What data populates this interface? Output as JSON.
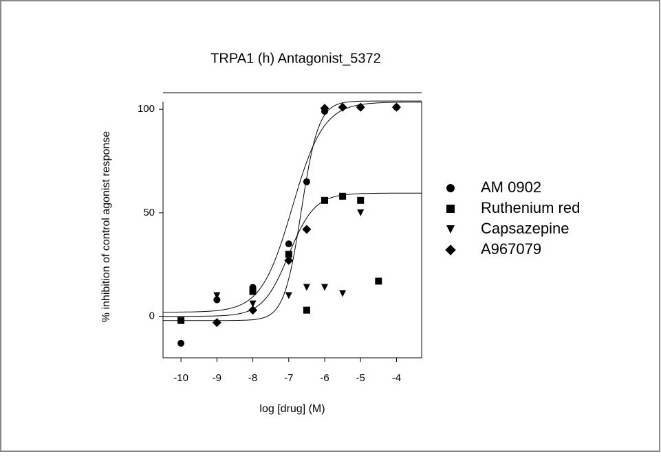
{
  "chart_data": {
    "type": "scatter",
    "title": "TRPA1 (h) Antagonist_5372",
    "xlabel": "log [drug] (M)",
    "ylabel": "% inhibition of control agonist response",
    "xlim": [
      -10.5,
      -3.3
    ],
    "ylim": [
      -20,
      108
    ],
    "xticks": [
      -10,
      -9,
      -8,
      -7,
      -6,
      -5,
      -4
    ],
    "yticks": [
      0,
      50,
      100
    ],
    "legend": "right",
    "series": [
      {
        "name": "AM 0902",
        "marker": "circle",
        "color": "#000000",
        "x": [
          -10,
          -9,
          -8,
          -7,
          -6.5,
          -6,
          -5,
          -4
        ],
        "values": [
          -13,
          8,
          14,
          35,
          65,
          99,
          101,
          101
        ],
        "fit": {
          "bottom": 2,
          "top": 103.5,
          "log_ec50": -6.9,
          "hill": 1.0
        }
      },
      {
        "name": "Ruthenium red",
        "marker": "square",
        "color": "#000000",
        "x": [
          -10,
          -8,
          -7,
          -6.5,
          -6,
          -5.5,
          -5,
          -4.5
        ],
        "values": [
          -2,
          12,
          30,
          3,
          56,
          58,
          56,
          17
        ],
        "fit": {
          "bottom": 0,
          "top": 59.5,
          "log_ec50": -7.0,
          "hill": 1.2
        }
      },
      {
        "name": "Capsazepine",
        "marker": "triangle-down",
        "color": "#000000",
        "x": [
          -9,
          -8,
          -7,
          -6.5,
          -6,
          -5.5,
          -5
        ],
        "values": [
          10,
          6,
          10,
          14,
          14,
          11,
          50
        ]
      },
      {
        "name": "A967079",
        "marker": "diamond",
        "color": "#000000",
        "x": [
          -9,
          -8,
          -7,
          -6.5,
          -6,
          -5.5,
          -5,
          -4
        ],
        "values": [
          -3,
          3,
          27,
          42,
          100.5,
          101,
          101,
          101
        ],
        "fit": {
          "bottom": -2,
          "top": 104,
          "log_ec50": -6.65,
          "hill": 1.8
        }
      }
    ]
  }
}
